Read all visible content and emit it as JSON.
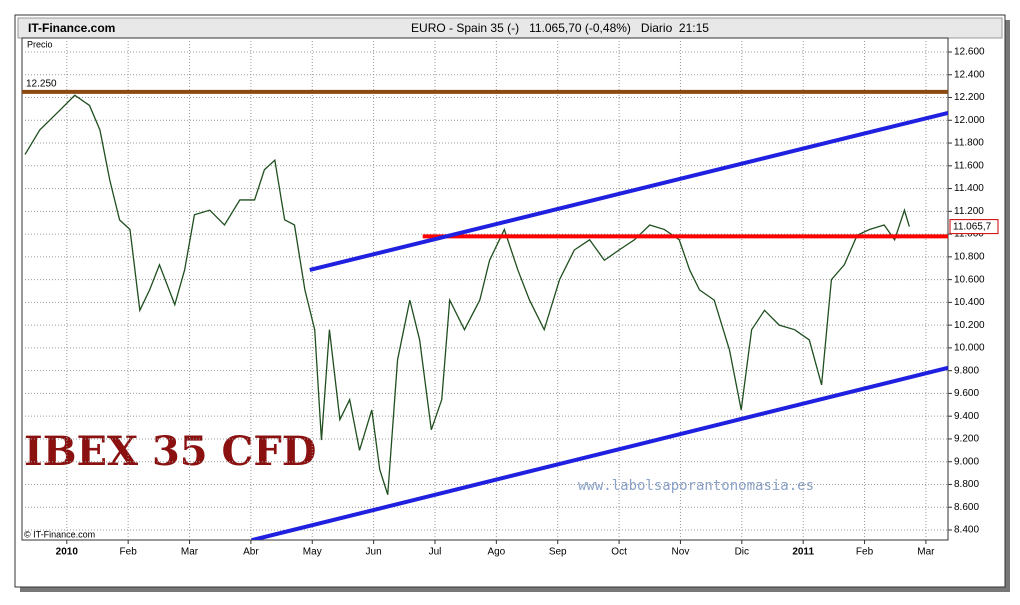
{
  "chart_data": {
    "type": "line",
    "site": "IT-Finance.com",
    "title": "EURO - Spain 35 (-)   11.065,70 (-0,48%)   Diario  21:15",
    "y_label": "Precio",
    "copyright": "© IT-Finance.com",
    "watermark": "IBEX 35 CFD",
    "url": "www.labolsaporantonomasia.es",
    "color": "#1f4f1f",
    "x": [
      -0.68,
      -0.44,
      -0.11,
      0.13,
      0.37,
      0.54,
      0.7,
      0.86,
      1.03,
      1.19,
      1.35,
      1.51,
      1.76,
      1.92,
      2.08,
      2.33,
      2.57,
      2.82,
      3.06,
      3.22,
      3.39,
      3.55,
      3.71,
      3.88,
      4.04,
      4.15,
      4.28,
      4.45,
      4.61,
      4.77,
      4.97,
      5.1,
      5.23,
      5.39,
      5.59,
      5.75,
      5.94,
      6.11,
      6.24,
      6.48,
      6.73,
      6.89,
      7.13,
      7.35,
      7.54,
      7.78,
      8.03,
      8.27,
      8.52,
      8.76,
      9.0,
      9.25,
      9.5,
      9.74,
      9.98,
      10.15,
      10.31,
      10.55,
      10.8,
      10.99,
      11.16,
      11.37,
      11.61,
      11.86,
      12.1,
      12.3,
      12.46,
      12.67,
      12.88,
      13.08,
      13.32,
      13.49,
      13.65,
      13.73
    ],
    "values": [
      11700,
      11915,
      12090,
      12220,
      12130,
      11915,
      11475,
      11125,
      11040,
      10330,
      10510,
      10730,
      10380,
      10685,
      11170,
      11210,
      11080,
      11300,
      11300,
      11565,
      11650,
      11125,
      11080,
      10510,
      10160,
      9190,
      10160,
      9370,
      9545,
      9100,
      9455,
      8930,
      8710,
      9895,
      10420,
      10070,
      9280,
      9545,
      10420,
      10160,
      10420,
      10770,
      11040,
      10685,
      10420,
      10160,
      10600,
      10860,
      10950,
      10770,
      10860,
      10950,
      11080,
      11040,
      10950,
      10685,
      10510,
      10420,
      9980,
      9455,
      10160,
      10330,
      10200,
      10160,
      10070,
      9675,
      10600,
      10730,
      10990,
      11040,
      11080,
      10950,
      11210,
      11065.7
    ],
    "last_label": {
      "value": 11065.7,
      "label": "11.065,7"
    },
    "reference_lines": [
      {
        "value": 12250,
        "label": "12.250",
        "color": "#8b4a12",
        "x": [
          -0.73,
          14.36
        ]
      },
      {
        "value": 10980,
        "color": "#ff0000",
        "x": [
          5.8,
          14.36
        ]
      }
    ],
    "trend_lines": [
      {
        "x": [
          3.96,
          14.36
        ],
        "y": [
          10685,
          12065
        ],
        "color": "#2020e0"
      },
      {
        "x": [
          3.01,
          14.36
        ],
        "y": [
          8310,
          9825
        ],
        "color": "#2020e0"
      }
    ],
    "xlim": [
      -0.73,
      14.36
    ],
    "xticks": [
      {
        "value": 0,
        "label": "2010"
      },
      {
        "value": 1,
        "label": "Feb"
      },
      {
        "value": 2,
        "label": "Mar"
      },
      {
        "value": 3,
        "label": "Abr"
      },
      {
        "value": 4,
        "label": "May"
      },
      {
        "value": 5,
        "label": "Jun"
      },
      {
        "value": 6,
        "label": "Jul"
      },
      {
        "value": 7,
        "label": "Ago"
      },
      {
        "value": 8,
        "label": "Sep"
      },
      {
        "value": 9,
        "label": "Oct"
      },
      {
        "value": 10,
        "label": "Nov"
      },
      {
        "value": 11,
        "label": "Dic"
      },
      {
        "value": 12,
        "label": "2011"
      },
      {
        "value": 13,
        "label": "Feb"
      },
      {
        "value": 14,
        "label": "Mar"
      }
    ],
    "ylim": [
      8312,
      12723
    ],
    "yticks": [
      {
        "value": 8400,
        "label": "8.400"
      },
      {
        "value": 8600,
        "label": "8.600"
      },
      {
        "value": 8800,
        "label": "8.800"
      },
      {
        "value": 9000,
        "label": "9.000"
      },
      {
        "value": 9200,
        "label": "9.200"
      },
      {
        "value": 9400,
        "label": "9.400"
      },
      {
        "value": 9600,
        "label": "9.600"
      },
      {
        "value": 9800,
        "label": "9.800"
      },
      {
        "value": 10000,
        "label": "10.000"
      },
      {
        "value": 10200,
        "label": "10.200"
      },
      {
        "value": 10400,
        "label": "10.400"
      },
      {
        "value": 10600,
        "label": "10.600"
      },
      {
        "value": 10800,
        "label": "10.800"
      },
      {
        "value": 11000,
        "label": "11.000"
      },
      {
        "value": 11200,
        "label": "11.200"
      },
      {
        "value": 11400,
        "label": "11.400"
      },
      {
        "value": 11600,
        "label": "11.600"
      },
      {
        "value": 11800,
        "label": "11.800"
      },
      {
        "value": 12000,
        "label": "12.000"
      },
      {
        "value": 12200,
        "label": "12.200"
      },
      {
        "value": 12400,
        "label": "12.400"
      },
      {
        "value": 12600,
        "label": "12.600"
      }
    ],
    "grid": true
  }
}
